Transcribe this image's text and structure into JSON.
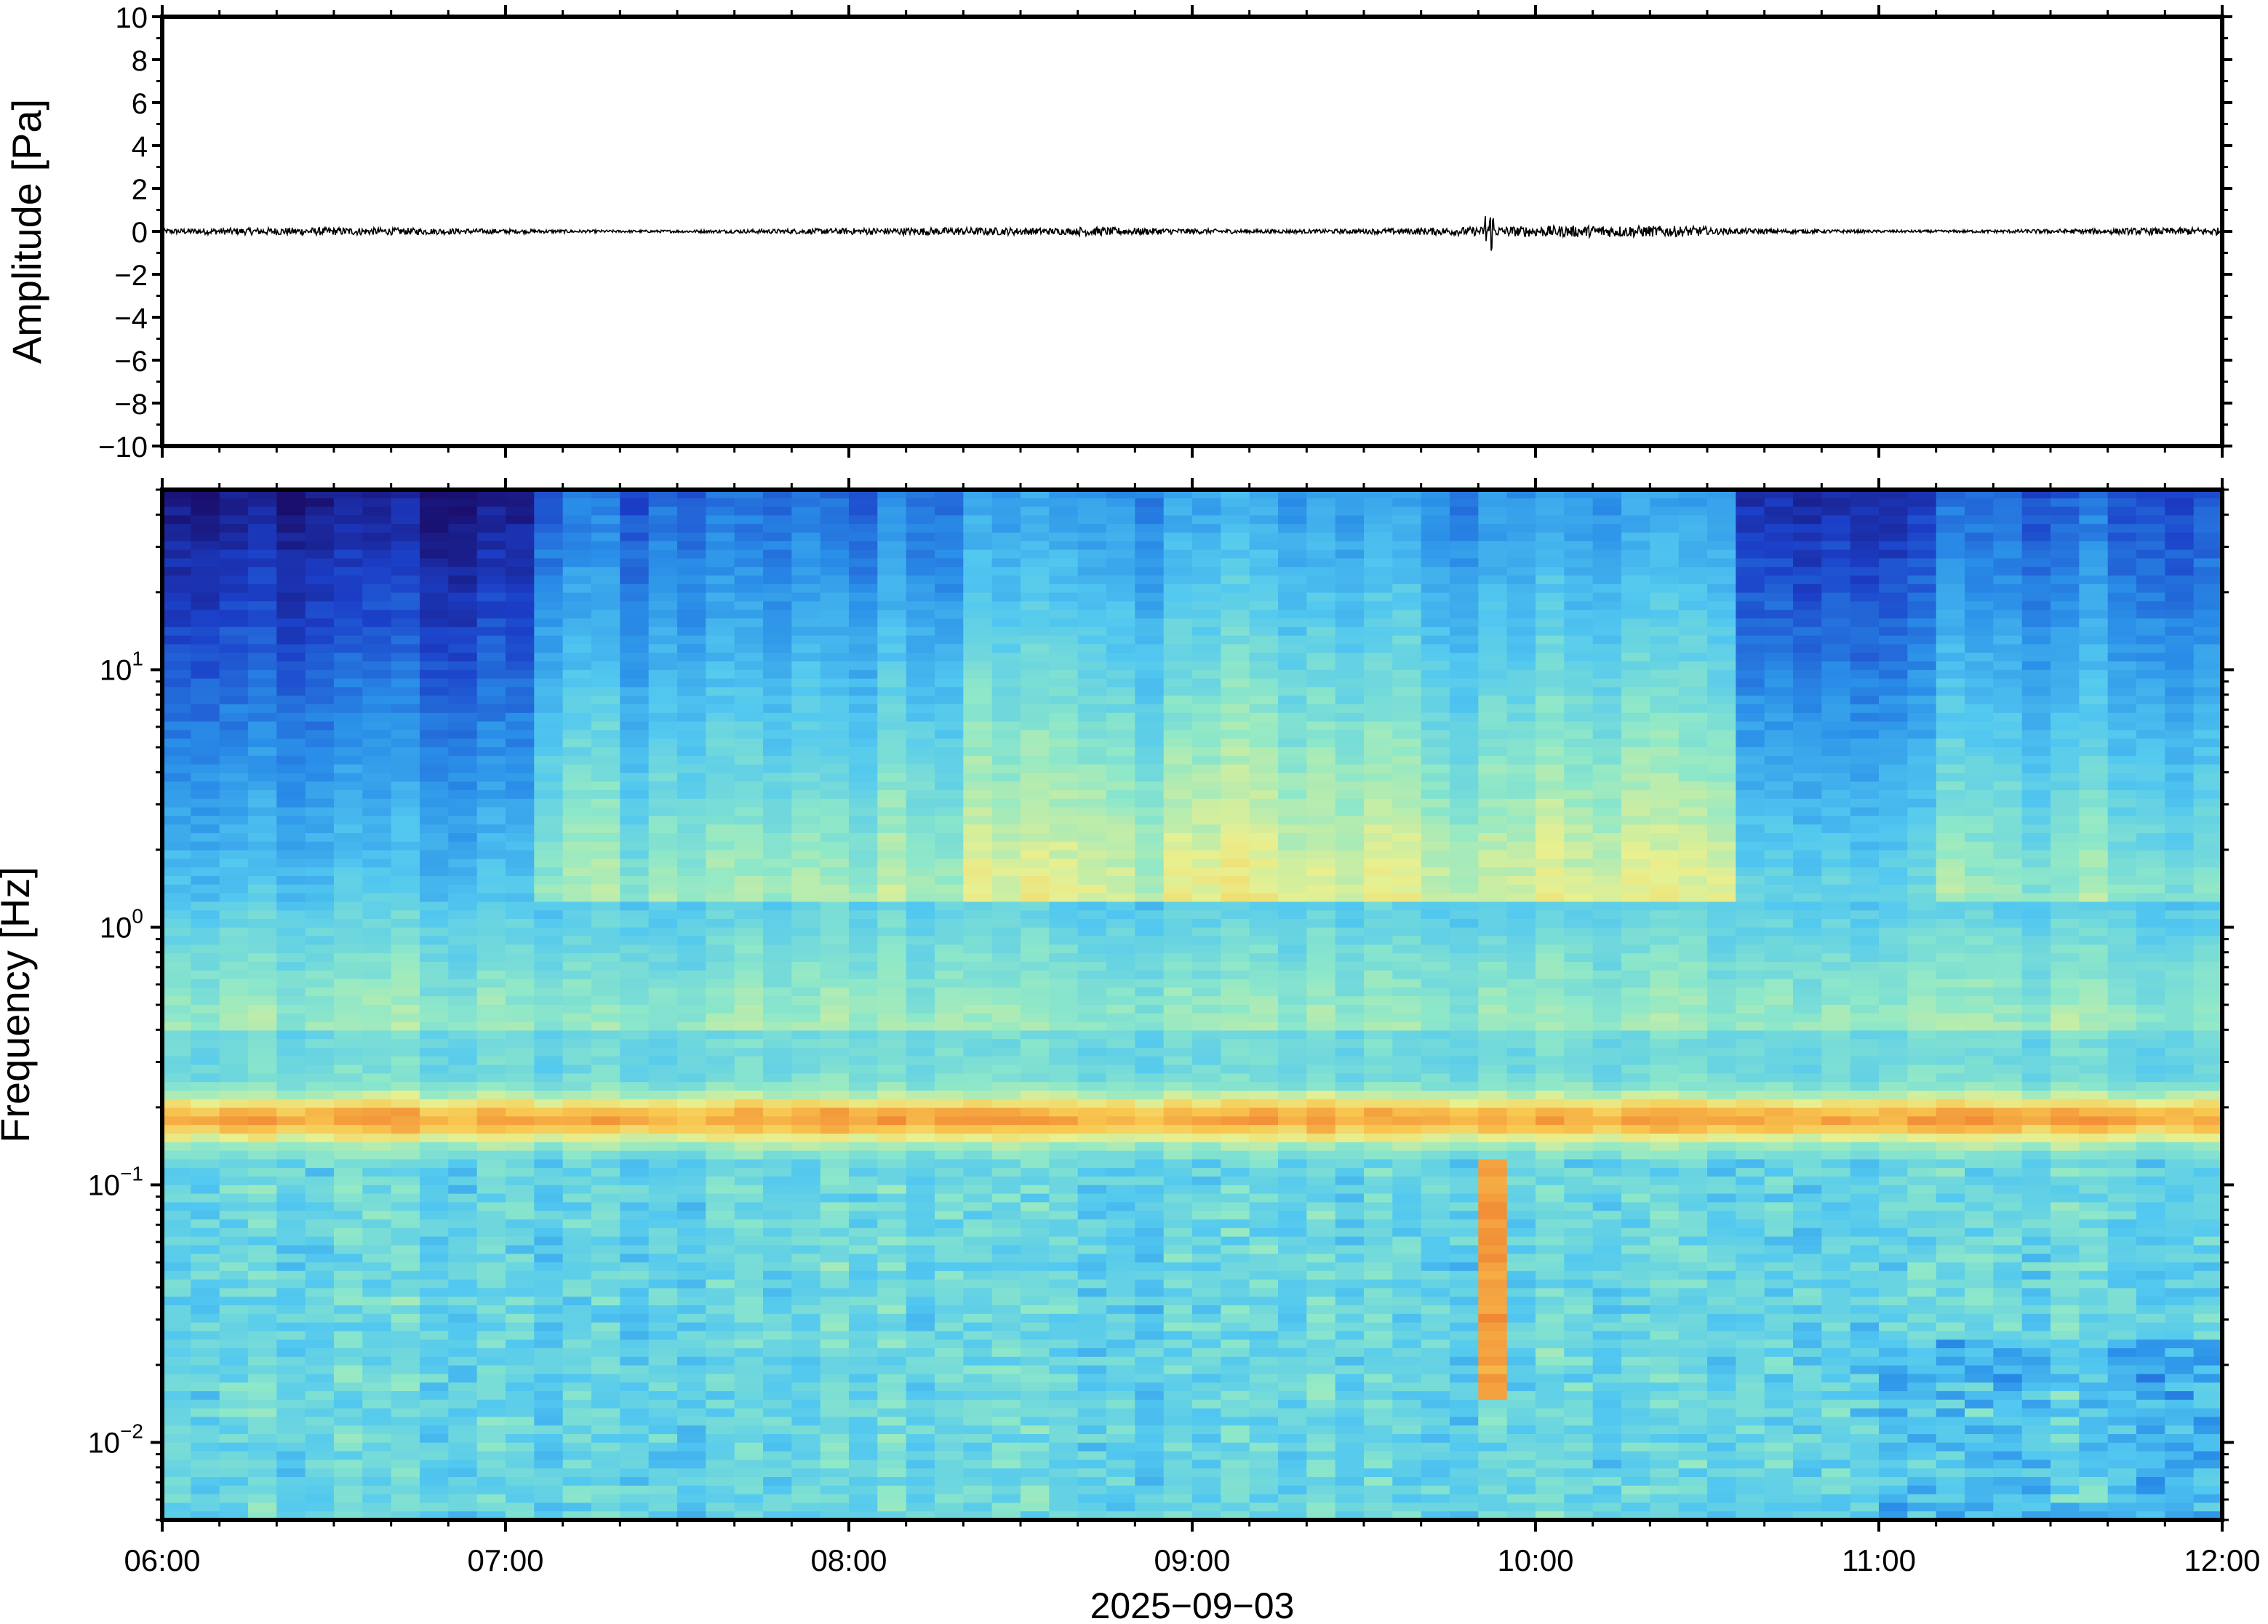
{
  "chart_data": [
    {
      "type": "line",
      "ylabel": "Amplitude [Pa]",
      "ylim": [
        -10,
        10
      ],
      "yticks": [
        "10",
        "8",
        "6",
        "4",
        "2",
        "0",
        "−2",
        "−4",
        "−6",
        "−8",
        "−10"
      ],
      "ytick_values": [
        10,
        8,
        6,
        4,
        2,
        0,
        -2,
        -4,
        -6,
        -8,
        -10
      ],
      "series": [
        {
          "values": [
            0.0,
            0.05,
            -0.05,
            0.1,
            -0.1,
            0.08,
            -0.06,
            0.12,
            -0.12,
            0.9,
            -0.7,
            0.1,
            -0.08,
            0.05,
            0.0
          ]
        }
      ],
      "x_points": [
        "06:00",
        "06:30",
        "07:00",
        "07:30",
        "08:00",
        "08:30",
        "09:00",
        "09:30",
        "09:45",
        "09:52",
        "09:53",
        "10:30",
        "11:00",
        "11:30",
        "12:00"
      ],
      "grid": false
    },
    {
      "type": "heatmap",
      "ylabel": "Frequency [Hz]",
      "xlabel": "2025−09−03",
      "yscale": "log",
      "ylim": [
        0.005,
        50
      ],
      "yticks": [
        {
          "base": "10",
          "exp": "1",
          "value": 10
        },
        {
          "base": "10",
          "exp": "0",
          "value": 1
        },
        {
          "base": "10",
          "exp": "−1",
          "value": 0.1
        },
        {
          "base": "10",
          "exp": "−2",
          "value": 0.01
        }
      ],
      "xticks": [
        "06:00",
        "07:00",
        "08:00",
        "09:00",
        "10:00",
        "11:00",
        "12:00"
      ],
      "xlim": [
        "06:00",
        "12:00"
      ],
      "colormap": [
        "#1a0f6e",
        "#1b3fc8",
        "#2a8fe8",
        "#52c8f0",
        "#8fe8c8",
        "#e8f090",
        "#f8c850",
        "#f08030"
      ],
      "microseism_band_hz": 0.18,
      "event_time": "09:52",
      "grid": false
    }
  ],
  "axes": {
    "date_label": "2025−09−03"
  }
}
